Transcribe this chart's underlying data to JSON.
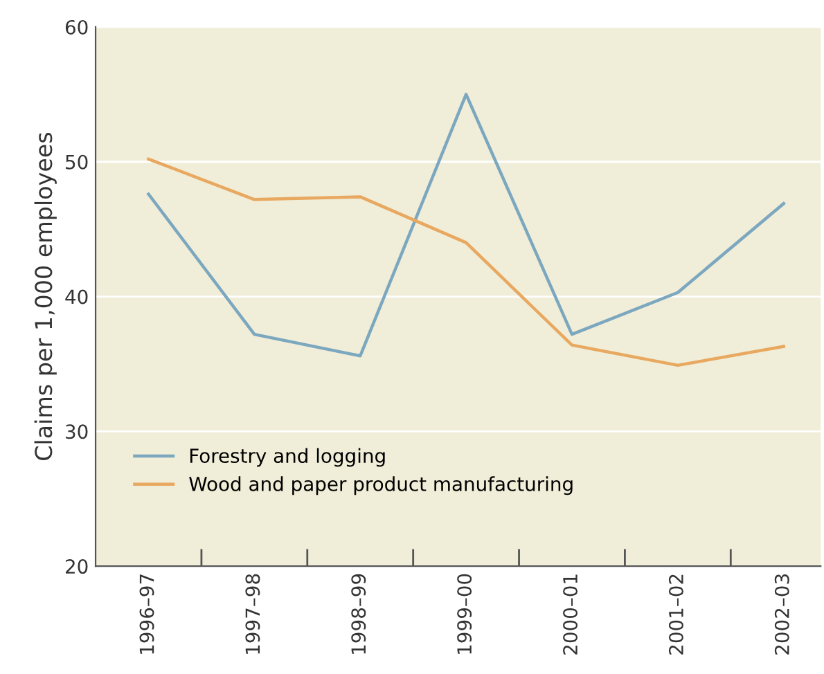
{
  "chart_data": {
    "type": "line",
    "ylabel": "Claims per 1,000 employees",
    "categories": [
      "1996–97",
      "1997–98",
      "1998–99",
      "1999–00",
      "2000–01",
      "2001–02",
      "2002–03"
    ],
    "series": [
      {
        "name": "Forestry and logging",
        "color": "#7ba7bf",
        "values": [
          47.6,
          37.2,
          35.6,
          55.0,
          37.2,
          40.3,
          46.9
        ]
      },
      {
        "name": "Wood and paper product manufacturing",
        "color": "#e8a860",
        "values": [
          50.2,
          47.2,
          47.4,
          44.0,
          36.4,
          34.9,
          36.3
        ]
      }
    ],
    "ylim": [
      20,
      60
    ],
    "yticks": [
      20,
      30,
      40,
      50,
      60
    ],
    "grid": "y",
    "legend": "bottom left",
    "marker": "none",
    "line_style": "solid"
  }
}
